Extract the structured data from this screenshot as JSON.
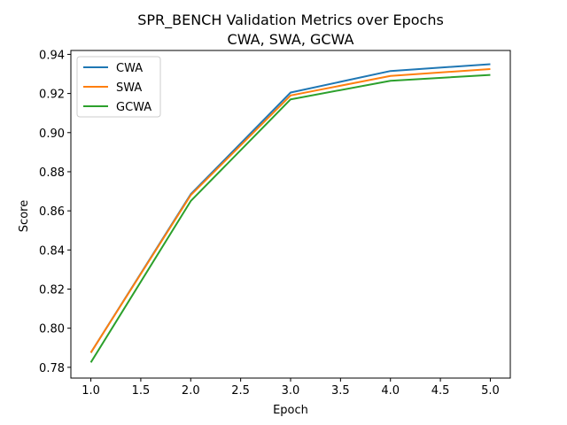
{
  "chart_data": {
    "type": "line",
    "title": "SPR_BENCH Validation Metrics over Epochs",
    "subtitle": "CWA, SWA, GCWA",
    "xlabel": "Epoch",
    "ylabel": "Score",
    "x": [
      1.0,
      2.0,
      3.0,
      4.0,
      5.0
    ],
    "xlim": [
      0.8,
      5.2
    ],
    "ylim": [
      0.7745,
      0.942
    ],
    "xticks": [
      1.0,
      1.5,
      2.0,
      2.5,
      3.0,
      3.5,
      4.0,
      4.5,
      5.0
    ],
    "yticks": [
      0.78,
      0.8,
      0.82,
      0.84,
      0.86,
      0.88,
      0.9,
      0.92,
      0.94
    ],
    "xtick_labels": [
      "1.0",
      "1.5",
      "2.0",
      "2.5",
      "3.0",
      "3.5",
      "4.0",
      "4.5",
      "5.0"
    ],
    "ytick_labels": [
      "0.78",
      "0.80",
      "0.82",
      "0.84",
      "0.86",
      "0.88",
      "0.90",
      "0.92",
      "0.94"
    ],
    "grid": false,
    "legend_position": "upper-left",
    "series": [
      {
        "name": "CWA",
        "color": "#1f77b4",
        "values": [
          0.7875,
          0.8685,
          0.9205,
          0.9315,
          0.935
        ]
      },
      {
        "name": "SWA",
        "color": "#ff7f0e",
        "values": [
          0.7875,
          0.868,
          0.919,
          0.929,
          0.9325
        ]
      },
      {
        "name": "GCWA",
        "color": "#2ca02c",
        "values": [
          0.7825,
          0.865,
          0.917,
          0.9265,
          0.9295
        ]
      }
    ]
  }
}
